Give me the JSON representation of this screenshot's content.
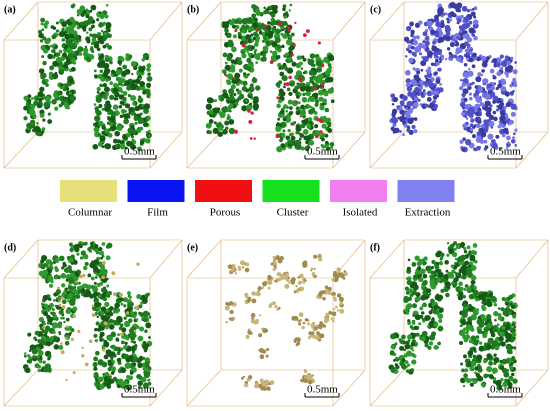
{
  "panels": [
    {
      "label": "(a)",
      "scale": "0.5mm"
    },
    {
      "label": "(b)",
      "scale": "0.5mm"
    },
    {
      "label": "(c)",
      "scale": "0.5mm"
    },
    {
      "label": "(d)",
      "scale": "0.5mm"
    },
    {
      "label": "(e)",
      "scale": "0.5mm"
    },
    {
      "label": "(f)",
      "scale": "0.5mm"
    }
  ],
  "legend": [
    {
      "label": "Columnar",
      "color": "#e6e07a"
    },
    {
      "label": "Film",
      "color": "#0a14f0"
    },
    {
      "label": "Porous",
      "color": "#f01010"
    },
    {
      "label": "Cluster",
      "color": "#14e01e"
    },
    {
      "label": "Isolated",
      "color": "#f080f0"
    },
    {
      "label": "Extraction",
      "color": "#8080f0"
    }
  ]
}
